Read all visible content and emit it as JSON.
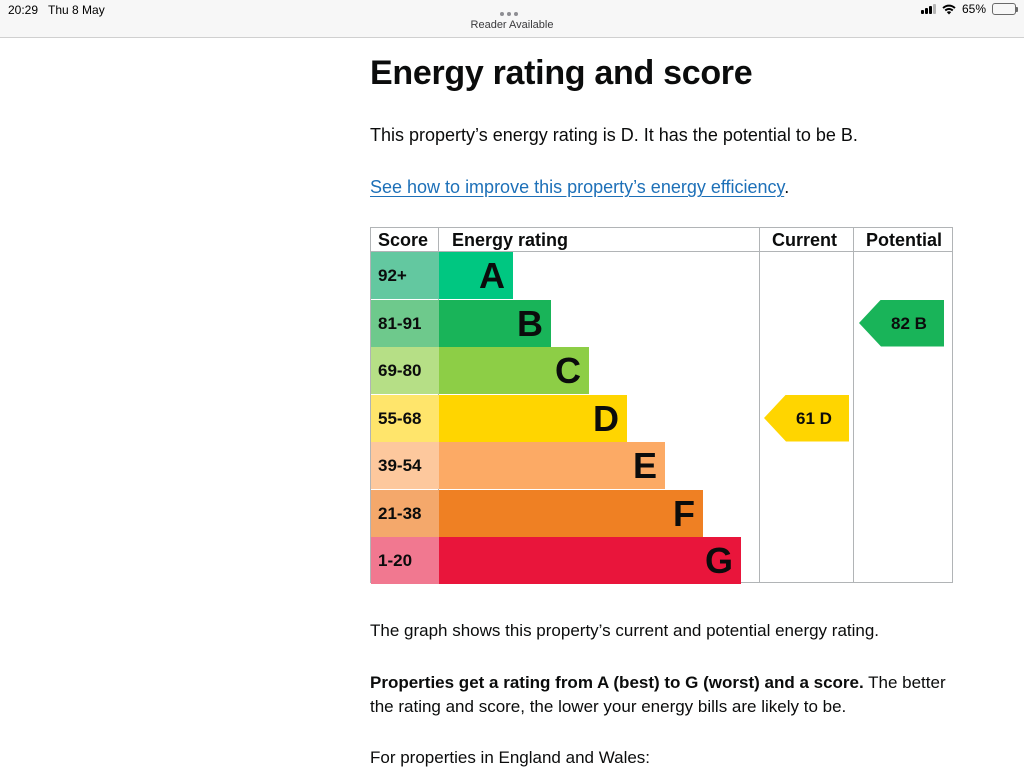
{
  "status_bar": {
    "time": "20:29",
    "date": "Thu 8 May",
    "reader": "Reader Available",
    "battery": "65%",
    "battery_level": 0.65
  },
  "page": {
    "title": "Energy rating and score",
    "intro": "This property’s energy rating is D. It has the potential to be B.",
    "link_text": "See how to improve this property’s energy efficiency",
    "link_suffix": ".",
    "graph_text": "The graph shows this property’s current and potential energy rating.",
    "ratings_bold": "Properties get a rating from A (best) to G (worst) and a score.",
    "ratings_rest": " The better the rating and score, the lower your energy bills are likely to be.",
    "england_wales": "For properties in England and Wales:"
  },
  "chart_data": {
    "type": "bar",
    "headers": {
      "score": "Score",
      "rating": "Energy rating",
      "current": "Current",
      "potential": "Potential"
    },
    "bands": [
      {
        "score": "92+",
        "letter": "A",
        "band_color": "#00c781",
        "score_color": "#63c8a0"
      },
      {
        "score": "81-91",
        "letter": "B",
        "band_color": "#19b459",
        "score_color": "#6ec98c"
      },
      {
        "score": "69-80",
        "letter": "C",
        "band_color": "#8dce46",
        "score_color": "#b6df86"
      },
      {
        "score": "55-68",
        "letter": "D",
        "band_color": "#ffd500",
        "score_color": "#ffe56b"
      },
      {
        "score": "39-54",
        "letter": "E",
        "band_color": "#fcaa65",
        "score_color": "#fdc89d"
      },
      {
        "score": "21-38",
        "letter": "F",
        "band_color": "#ef8023",
        "score_color": "#f4a86b"
      },
      {
        "score": "1-20",
        "letter": "G",
        "band_color": "#e9153b",
        "score_color": "#f17890"
      }
    ],
    "current": {
      "value": 61,
      "letter": "D",
      "label": "61  D",
      "color": "#ffd500"
    },
    "potential": {
      "value": 82,
      "letter": "B",
      "label": "82  B",
      "color": "#19b459"
    }
  }
}
